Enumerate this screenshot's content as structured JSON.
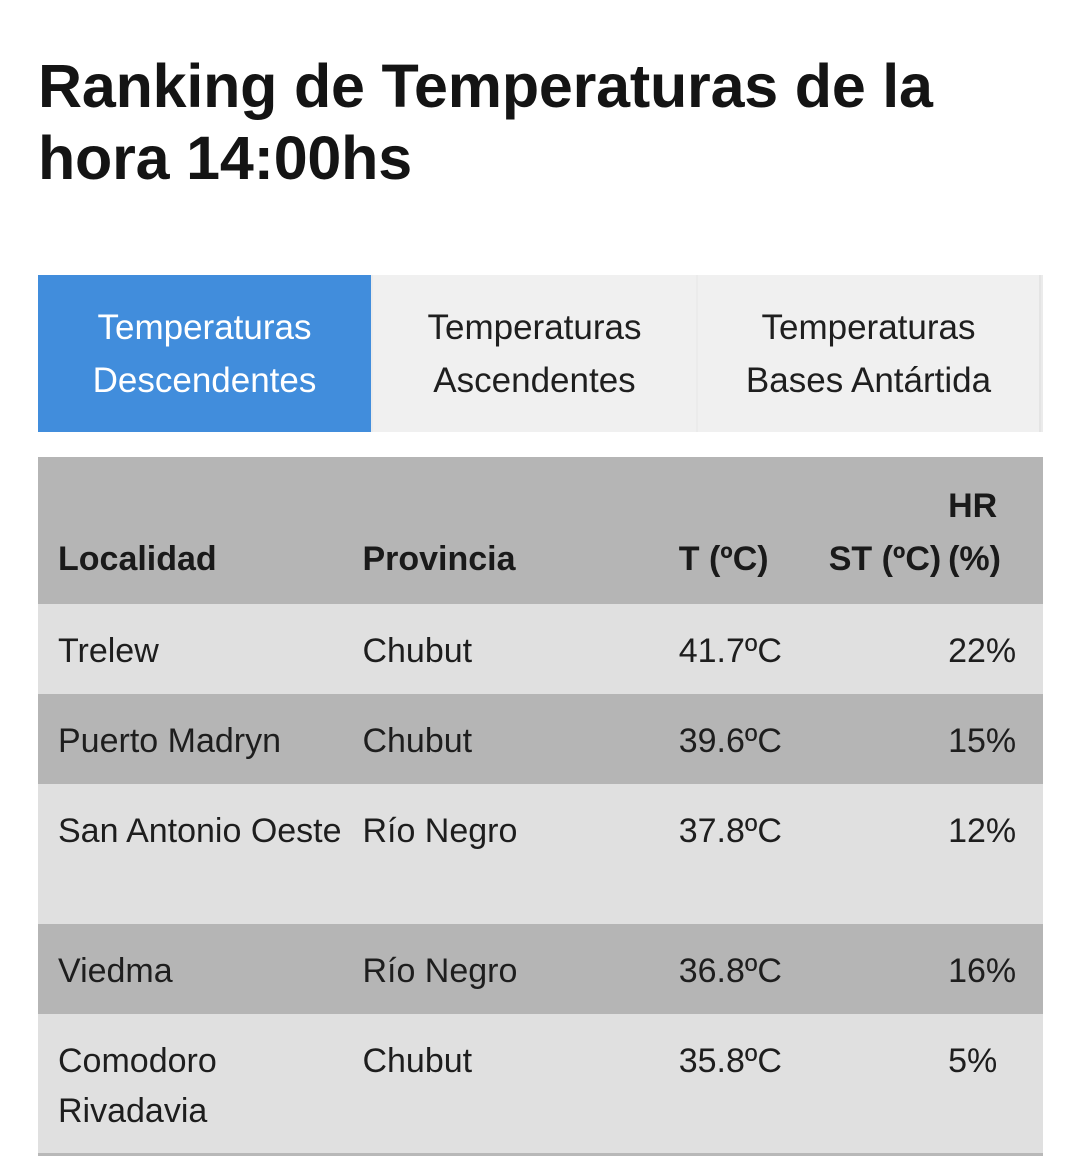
{
  "page": {
    "title": "Ranking de Temperaturas de la hora 14:00hs"
  },
  "tabs": [
    {
      "line1": "Temperaturas",
      "line2": "Descendentes",
      "active": true
    },
    {
      "line1": "Temperaturas",
      "line2": "Ascendentes",
      "active": false
    },
    {
      "line1": "Temperaturas",
      "line2": "Bases Antártida",
      "active": false
    }
  ],
  "table": {
    "headers": {
      "localidad": "Localidad",
      "provincia": "Provincia",
      "t": "T (ºC)",
      "st": "ST (ºC)",
      "hr": "HR (%)"
    },
    "rows": [
      {
        "localidad": "Trelew",
        "provincia": "Chubut",
        "t": "41.7ºC",
        "st": "",
        "hr": "22%"
      },
      {
        "localidad": "Puerto Madryn",
        "provincia": "Chubut",
        "t": "39.6ºC",
        "st": "",
        "hr": "15%"
      },
      {
        "localidad": "San Antonio Oeste",
        "provincia": "Río Negro",
        "t": "37.8ºC",
        "st": "",
        "hr": "12%"
      },
      {
        "localidad": "Viedma",
        "provincia": "Río Negro",
        "t": "36.8ºC",
        "st": "",
        "hr": "16%"
      },
      {
        "localidad": "Comodoro Rivadavia",
        "provincia": "Chubut",
        "t": "35.8ºC",
        "st": "",
        "hr": "5%"
      }
    ]
  },
  "colors": {
    "active_tab": "#418ddc",
    "inactive_tab": "#f0f0f0",
    "header_row": "#b5b5b5",
    "row_light": "#e0e0e0",
    "row_dark": "#b5b5b5"
  }
}
